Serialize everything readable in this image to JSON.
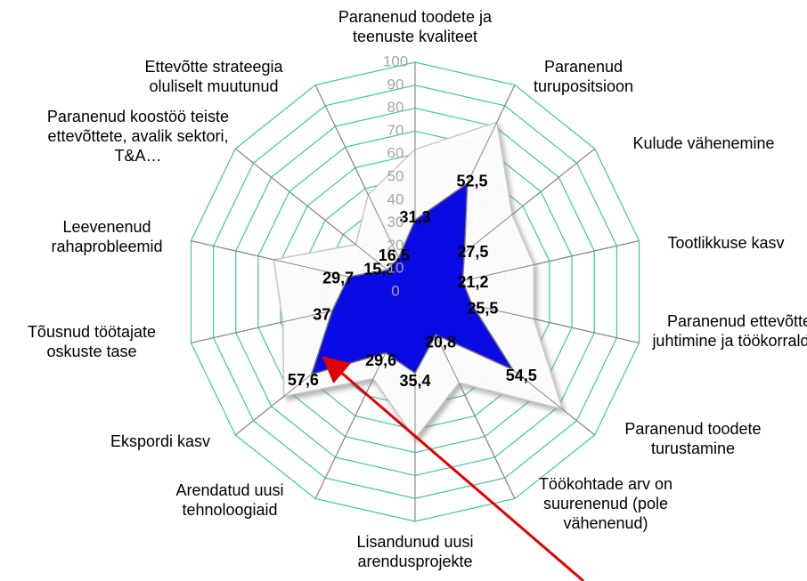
{
  "chart_data": {
    "type": "radar",
    "categories": [
      "Paranenud toodete ja teenuste kvaliteet",
      "Paranenud turupositsioon",
      "Kulude vähenemine",
      "Tootlikkuse kasv",
      "Paranenud ettevõtte juhtimine ja töökorraldus",
      "Paranenud toodete turustamine",
      "Töökohtade arv on suurenenud (pole vähenenud)",
      "Lisandunud uusi arendusprojekte",
      "Arendatud  uusi tehnoloogiaid",
      "Ekspordi kasv",
      "Tõusnud töötajate oskuste tase",
      "Leevenenud rahaprobleemid",
      "Paranenud koostöö teiste ettevõttete, avalik sektori, T&A…",
      "Ettevõtte strateegia oluliselt muutunud"
    ],
    "series": [
      {
        "color": "#ffffff",
        "values": [
          62,
          82,
          54,
          53,
          53,
          82,
          44,
          64,
          42,
          73,
          59,
          63,
          33,
          47
        ]
      },
      {
        "color": "#0a0ae6",
        "values": [
          31.3,
          52.5,
          27.5,
          21.2,
          25.5,
          54.5,
          20.8,
          35.4,
          29.6,
          57.6,
          37,
          29.7,
          15.3,
          16.5
        ],
        "value_labels": [
          "31,3",
          "52,5",
          "27,5",
          "21,2",
          "25,5",
          "54,5",
          "20,8",
          "35,4",
          "29,6",
          "57,6",
          "37",
          "29,7",
          "15,3",
          "16,5"
        ]
      }
    ],
    "ylim": [
      0,
      100
    ],
    "yticks": [
      0,
      10,
      20,
      30,
      40,
      50,
      60,
      70,
      80,
      90,
      100
    ],
    "grid": true
  }
}
